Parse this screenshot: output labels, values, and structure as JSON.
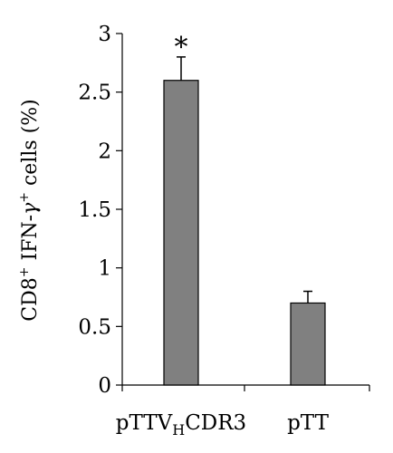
{
  "chart_data": {
    "type": "bar",
    "categories": [
      {
        "prefix": "pTTV",
        "subscript": "H",
        "suffix": "CDR3"
      },
      {
        "prefix": "pTT",
        "subscript": "",
        "suffix": ""
      }
    ],
    "values": [
      2.6,
      0.7
    ],
    "error_upper": [
      0.2,
      0.1
    ],
    "annotations": [
      "*",
      ""
    ],
    "ylabel": {
      "base1": "CD8",
      "sup1": "+",
      "mid": " IFN-",
      "gamma": "γ",
      "sup2": "+",
      "tail": " cells (%)"
    },
    "ylim": [
      0,
      3
    ],
    "yticks": [
      "0",
      "0.5",
      "1",
      "1.5",
      "2",
      "2.5",
      "3"
    ],
    "ytick_values": [
      0,
      0.5,
      1,
      1.5,
      2,
      2.5,
      3
    ],
    "bar_color": "#808080",
    "bar_edge_color": "#000000",
    "grid": false,
    "legend": "none"
  }
}
